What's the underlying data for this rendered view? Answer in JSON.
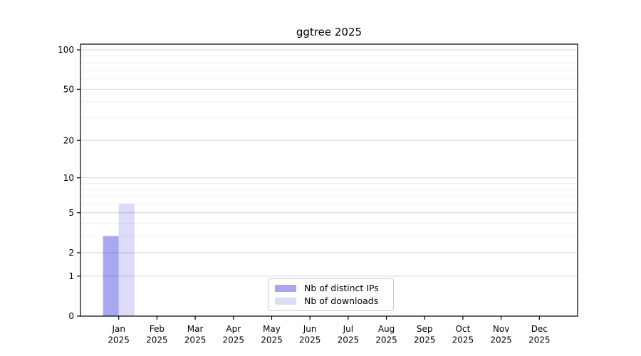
{
  "chart_data": {
    "type": "bar",
    "title": "ggtree 2025",
    "months": [
      "Jan",
      "Feb",
      "Mar",
      "Apr",
      "May",
      "Jun",
      "Jul",
      "Aug",
      "Sep",
      "Oct",
      "Nov",
      "Dec"
    ],
    "year": "2025",
    "series": [
      {
        "name": "Nb of distinct IPs",
        "color": "#a8a8f0",
        "values": [
          3,
          0,
          0,
          0,
          0,
          0,
          0,
          0,
          0,
          0,
          0,
          0
        ]
      },
      {
        "name": "Nb of downloads",
        "color": "#dcdcf8",
        "values": [
          6,
          0,
          0,
          0,
          0,
          0,
          0,
          0,
          0,
          0,
          0,
          0
        ]
      }
    ],
    "xlabel": "",
    "ylabel": "",
    "y_axis": {
      "scale": "log1p",
      "ticks": [
        0,
        1,
        2,
        5,
        10,
        20,
        50,
        100
      ],
      "minor_gridlines": [
        3,
        4,
        6,
        7,
        8,
        9,
        30,
        40,
        60,
        70,
        80,
        90
      ],
      "ylim": [
        0,
        112
      ]
    },
    "grid": "horizontal",
    "legend_position": "inside-bottom-center",
    "colors": {
      "axis": "#000000",
      "major_grid": "rgba(0,0,0,0.16)",
      "minor_grid": "rgba(0,0,0,0.055)",
      "background": "#ffffff",
      "legend_border": "#cccccc"
    }
  }
}
